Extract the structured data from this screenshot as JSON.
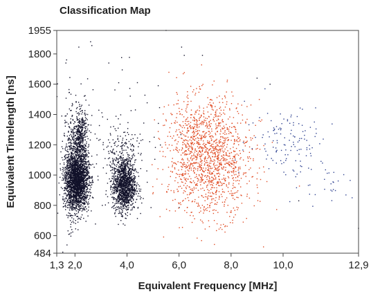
{
  "chart_data": {
    "type": "scatter",
    "title": "Classification Map",
    "xlabel": "Equivalent Frequency [MHz]",
    "ylabel": "Equivalent Timelength [ns]",
    "xlim": [
      1.3,
      12.9
    ],
    "ylim": [
      484,
      1955
    ],
    "x_ticks": [
      1.3,
      2.0,
      4.0,
      6.0,
      8.0,
      10.0,
      12.9
    ],
    "x_tick_labels": [
      "1,3",
      "2,0",
      "4,0",
      "6,0",
      "8,0",
      "10,0",
      "12,9"
    ],
    "y_ticks": [
      484,
      600,
      800,
      1000,
      1200,
      1400,
      1600,
      1800,
      1955
    ],
    "y_tick_labels": [
      "484",
      "600",
      "800",
      "1000",
      "1200",
      "1400",
      "1600",
      "1800",
      "1955"
    ],
    "grid": false,
    "legend": "none",
    "clusters": [
      {
        "color": "#12122a",
        "regions": [
          {
            "x_mean": 2.1,
            "x_sd": 0.22,
            "y_mean": 960,
            "y_sd": 95,
            "count": 2200
          },
          {
            "x_mean": 2.2,
            "x_sd": 0.15,
            "y_mean": 1250,
            "y_sd": 90,
            "count": 450
          },
          {
            "x_mean": 1.8,
            "x_sd": 0.12,
            "y_mean": 1050,
            "y_sd": 200,
            "count": 300
          },
          {
            "x_mean": 3.9,
            "x_sd": 0.22,
            "y_mean": 930,
            "y_sd": 85,
            "count": 1300
          },
          {
            "x_mean": 3.8,
            "x_sd": 0.3,
            "y_mean": 1150,
            "y_sd": 90,
            "count": 150
          },
          {
            "x_mean": 3.0,
            "x_sd": 1.3,
            "y_mean": 1200,
            "y_sd": 300,
            "count": 130
          }
        ],
        "points": [
          [
            2.6,
            1880
          ],
          [
            2.65,
            1855
          ],
          [
            2.15,
            1845
          ],
          [
            1.65,
            1740
          ],
          [
            5.5,
            1955
          ],
          [
            6.2,
            1790
          ],
          [
            6.9,
            1790
          ],
          [
            9.0,
            1640
          ],
          [
            9.5,
            1600
          ],
          [
            5.2,
            1590
          ],
          [
            10.6,
            830
          ],
          [
            12.9,
            648
          ],
          [
            3.3,
            1740
          ],
          [
            4.4,
            1610
          ],
          [
            6.1,
            1845
          ]
        ]
      },
      {
        "color": "#e04a22",
        "regions": [
          {
            "x_mean": 7.2,
            "x_sd": 0.8,
            "y_mean": 1100,
            "y_sd": 190,
            "count": 1300
          },
          {
            "x_mean": 6.5,
            "x_sd": 0.6,
            "y_mean": 1250,
            "y_sd": 150,
            "count": 200
          }
        ]
      },
      {
        "color": "#2b3f8f",
        "regions": [
          {
            "x_mean": 10.2,
            "x_sd": 0.8,
            "y_mean": 1230,
            "y_sd": 120,
            "count": 130
          },
          {
            "x_mean": 11.8,
            "x_sd": 0.5,
            "y_mean": 950,
            "y_sd": 90,
            "count": 25
          }
        ]
      }
    ]
  }
}
